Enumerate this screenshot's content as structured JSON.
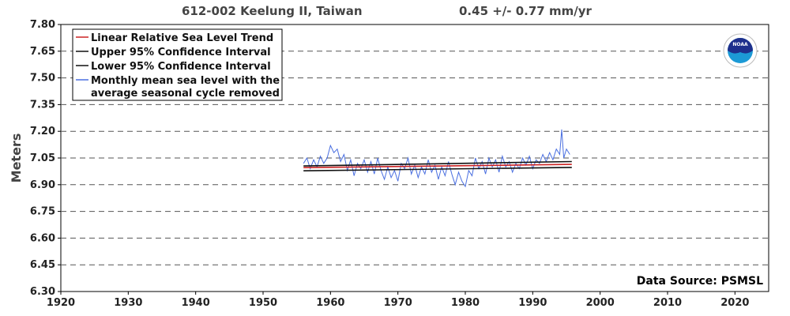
{
  "header": {
    "title": "612-002 Keelung II, Taiwan",
    "trend_text": "0.45 +/-  0.77 mm/yr"
  },
  "source_label": "Data Source: PSMSL",
  "logo": {
    "icon": "noaa-logo",
    "text": "NOAA"
  },
  "colors": {
    "trend": "#cc2222",
    "confidence": "#111111",
    "monthly": "#4a6fe0",
    "grid": "#555555"
  },
  "chart_data": {
    "type": "line",
    "title": "612-002 Keelung II, Taiwan",
    "subtitle": "0.45 +/-  0.77 mm/yr",
    "xlabel": "",
    "ylabel": "Meters",
    "xlim": [
      1920,
      2025
    ],
    "ylim": [
      6.3,
      7.8
    ],
    "x_ticks": [
      "1920",
      "1930",
      "1940",
      "1950",
      "1960",
      "1970",
      "1980",
      "1990",
      "2000",
      "2010",
      "2020"
    ],
    "y_ticks": [
      "7.80",
      "7.65",
      "7.50",
      "7.35",
      "7.20",
      "7.05",
      "6.90",
      "6.75",
      "6.60",
      "6.45",
      "6.30"
    ],
    "grid": "horizontal dashed",
    "legend_position": "top-left",
    "annotation": "Data Source: PSMSL",
    "series": [
      {
        "name": "Linear Relative Sea Level Trend",
        "kind": "trend",
        "x": [
          1956,
          1995.8
        ],
        "y": [
          6.996,
          7.014
        ]
      },
      {
        "name": "Upper 95% Confidence Interval",
        "kind": "upper",
        "x": [
          1956,
          1995.8
        ],
        "y": [
          7.005,
          7.03
        ]
      },
      {
        "name": "Lower 95% Confidence Interval",
        "kind": "lower",
        "x": [
          1956,
          1995.8
        ],
        "y": [
          6.978,
          6.997
        ]
      },
      {
        "name": "Monthly mean sea level with the average seasonal cycle removed",
        "kind": "monthly",
        "x": [
          1956.0,
          1956.5,
          1957.0,
          1957.5,
          1958.0,
          1958.5,
          1959.0,
          1959.5,
          1960.0,
          1960.5,
          1961.0,
          1961.5,
          1962.0,
          1962.5,
          1963.0,
          1963.5,
          1964.0,
          1964.5,
          1965.0,
          1965.5,
          1966.0,
          1966.5,
          1967.0,
          1967.5,
          1968.0,
          1968.5,
          1969.0,
          1969.5,
          1970.0,
          1970.5,
          1971.0,
          1971.5,
          1972.0,
          1972.5,
          1973.0,
          1973.5,
          1974.0,
          1974.5,
          1975.0,
          1975.5,
          1976.0,
          1976.5,
          1977.0,
          1977.5,
          1978.0,
          1978.5,
          1979.0,
          1979.5,
          1980.0,
          1980.5,
          1981.0,
          1981.5,
          1982.0,
          1982.5,
          1983.0,
          1983.5,
          1984.0,
          1984.5,
          1985.0,
          1985.5,
          1986.0,
          1986.5,
          1987.0,
          1987.5,
          1988.0,
          1988.5,
          1989.0,
          1989.5,
          1990.0,
          1990.5,
          1991.0,
          1991.5,
          1992.0,
          1992.5,
          1993.0,
          1993.5,
          1994.0,
          1994.3,
          1994.6,
          1995.0,
          1995.5
        ],
        "y": [
          7.02,
          7.05,
          6.99,
          7.04,
          7.0,
          7.06,
          7.02,
          7.05,
          7.12,
          7.08,
          7.1,
          7.03,
          7.07,
          6.98,
          7.04,
          6.95,
          7.02,
          6.99,
          7.04,
          6.97,
          7.03,
          6.96,
          7.05,
          6.98,
          6.93,
          7.0,
          6.94,
          6.98,
          6.92,
          7.02,
          6.99,
          7.05,
          6.96,
          7.01,
          6.94,
          7.0,
          6.96,
          7.04,
          6.97,
          7.01,
          6.93,
          7.0,
          6.95,
          7.03,
          6.96,
          6.9,
          6.97,
          6.92,
          6.89,
          6.98,
          6.95,
          7.05,
          6.99,
          7.03,
          6.96,
          7.05,
          7.0,
          7.04,
          6.97,
          7.06,
          7.0,
          7.03,
          6.97,
          7.02,
          6.99,
          7.05,
          7.01,
          7.06,
          6.99,
          7.04,
          7.02,
          7.07,
          7.03,
          7.08,
          7.04,
          7.1,
          7.07,
          7.21,
          7.05,
          7.1,
          7.07
        ]
      }
    ]
  }
}
